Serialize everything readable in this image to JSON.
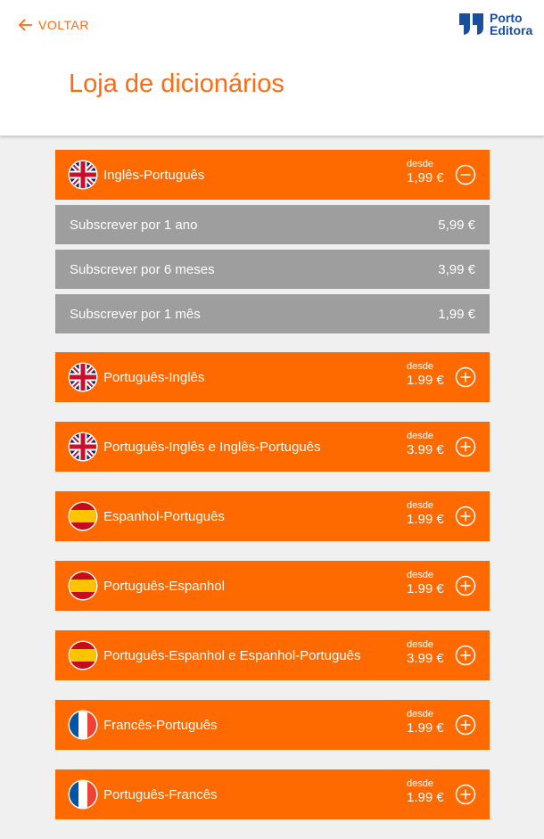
{
  "header": {
    "back_label": "VOLTAR",
    "logo_line1": "Porto",
    "logo_line2": "Editora",
    "title": "Loja de dicionários"
  },
  "colors": {
    "accent": "#ff6a00",
    "subscription_bg": "#9e9e9e",
    "logo_blue": "#1a4fa0"
  },
  "dictionaries": [
    {
      "name": "Inglês-Português",
      "flag": "uk-flag-icon",
      "desde": "desde",
      "price": "1,99 €",
      "expanded": true,
      "subscriptions": [
        {
          "label": "Subscrever por 1 ano",
          "price": "5,99 €"
        },
        {
          "label": "Subscrever por 6 meses",
          "price": "3,99 €"
        },
        {
          "label": "Subscrever por 1 mês",
          "price": "1,99 €"
        }
      ]
    },
    {
      "name": "Português-Inglês",
      "flag": "uk-flag-icon",
      "desde": "desde",
      "price": "1.99 €",
      "expanded": false
    },
    {
      "name": "Português-Inglês e Inglês-Português",
      "flag": "uk-flag-icon",
      "desde": "desde",
      "price": "3.99 €",
      "expanded": false
    },
    {
      "name": "Espanhol-Português",
      "flag": "spain-flag-icon",
      "desde": "desde",
      "price": "1.99 €",
      "expanded": false
    },
    {
      "name": "Português-Espanhol",
      "flag": "spain-flag-icon",
      "desde": "desde",
      "price": "1.99 €",
      "expanded": false
    },
    {
      "name": "Português-Espanhol e Espanhol-Português",
      "flag": "spain-flag-icon",
      "desde": "desde",
      "price": "3.99 €",
      "expanded": false
    },
    {
      "name": "Francês-Português",
      "flag": "france-flag-icon",
      "desde": "desde",
      "price": "1.99 €",
      "expanded": false
    },
    {
      "name": "Português-Francês",
      "flag": "france-flag-icon",
      "desde": "desde",
      "price": "1.99 €",
      "expanded": false
    }
  ]
}
